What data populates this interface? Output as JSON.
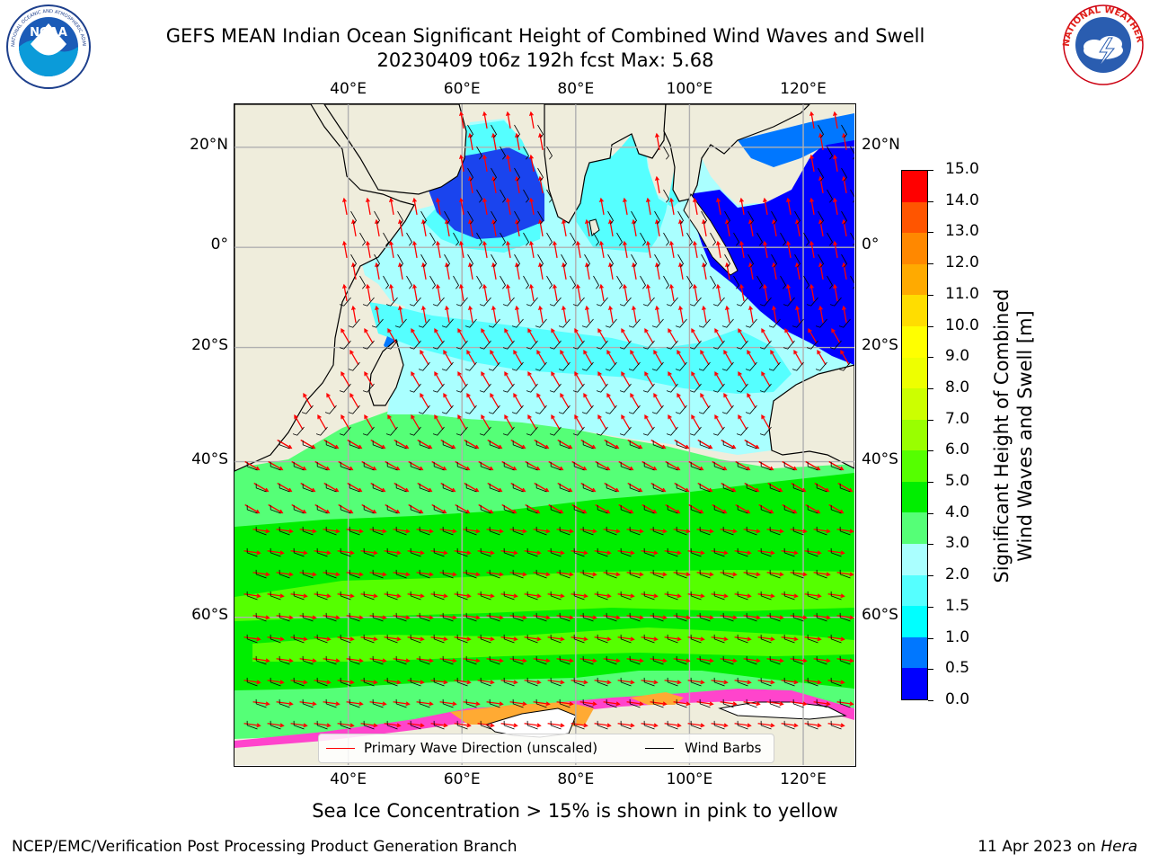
{
  "figure": {
    "title_line1": "GEFS MEAN Indian Ocean Significant Height of Combined Wind Waves and Swell",
    "title_line2": "20230409 t06z 192h fcst   Max: 5.68",
    "subcaption": "Sea Ice Concentration > 15% is shown in pink to yellow",
    "footer_left": "NCEP/EMC/Verification Post Processing Product Generation Branch",
    "footer_right_prefix": "11 Apr 2023 on ",
    "footer_right_host": "Hera"
  },
  "logos": {
    "left": {
      "name": "NOAA",
      "ring_text": "NATIONAL OCEANIC AND ATMOSPHERIC ADMINISTRATION · U.S. DEPARTMENT OF COMMERCE"
    },
    "right": {
      "name": "NATIONAL WEATHER SERVICE"
    }
  },
  "map": {
    "lon_range": [
      20,
      129
    ],
    "lat_range": [
      -72,
      28
    ],
    "lon_ticks": [
      "40°E",
      "60°E",
      "80°E",
      "100°E",
      "120°E"
    ],
    "lat_ticks": [
      "20°N",
      "0°",
      "20°S",
      "40°S",
      "60°S"
    ],
    "grid": true,
    "colors": {
      "land": "#efeddc",
      "ocean_default": "#aaffff"
    },
    "wave_field_note": "colored fill of significant wave height with red wave-direction arrows and black wind barbs"
  },
  "legend": {
    "placement": "lower-center",
    "items": [
      {
        "label": "Primary Wave Direction (unscaled)",
        "color": "#ff0000"
      },
      {
        "label": "Wind Barbs",
        "color": "#000000"
      }
    ]
  },
  "colorbar": {
    "label_line1": "Significant Height of Combined",
    "label_line2": "Wind Waves and Swell [m]",
    "ticks": [
      "0.0",
      "0.5",
      "1.0",
      "1.5",
      "2.0",
      "3.0",
      "4.0",
      "5.0",
      "6.0",
      "7.0",
      "8.0",
      "9.0",
      "10.0",
      "11.0",
      "12.0",
      "13.0",
      "14.0",
      "15.0"
    ],
    "colors": [
      "#0000ff",
      "#0077ff",
      "#00ffff",
      "#55ffff",
      "#aaffff",
      "#55ff77",
      "#00ee00",
      "#55ff00",
      "#99ff00",
      "#ccff00",
      "#eeff00",
      "#ffff00",
      "#ffdd00",
      "#ffaa00",
      "#ff8800",
      "#ff5500",
      "#ff0000"
    ]
  }
}
